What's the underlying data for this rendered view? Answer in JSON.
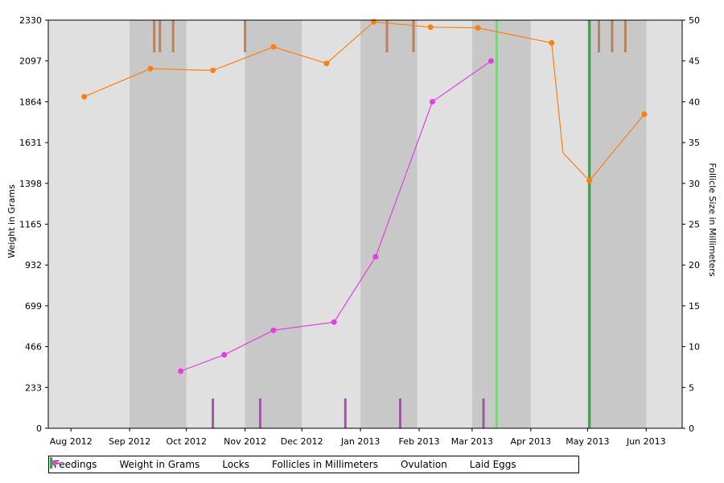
{
  "chart_data": {
    "type": "line",
    "x_categories": [
      "Aug 2012",
      "Sep 2012",
      "Oct 2012",
      "Nov 2012",
      "Dec 2012",
      "Jan 2013",
      "Feb 2013",
      "Mar 2013",
      "Apr 2013",
      "May 2013",
      "Jun 2013"
    ],
    "x_range": [
      "2012-07-20",
      "2013-06-20"
    ],
    "y_left": {
      "label": "Weight in Grams",
      "ticks": [
        "0",
        "233",
        "466",
        "699",
        "932",
        "1165",
        "1398",
        "1631",
        "1864",
        "2097",
        "2330"
      ],
      "range": [
        0,
        2330
      ]
    },
    "y_right": {
      "label": "Follicle Size in Millimeters",
      "ticks": [
        "0",
        "5",
        "10",
        "15",
        "20",
        "25",
        "30",
        "35",
        "40",
        "45",
        "50"
      ],
      "range": [
        0,
        50
      ]
    },
    "shaded_bands": [
      [
        "2012-09-01",
        "2012-10-01"
      ],
      [
        "2012-11-01",
        "2012-12-01"
      ],
      [
        "2013-01-01",
        "2013-01-31"
      ],
      [
        "2013-03-01",
        "2013-04-01"
      ],
      [
        "2013-05-01",
        "2013-06-01"
      ]
    ],
    "series": [
      {
        "name": "Weight in Grams",
        "color": "#ff7f0e",
        "axis": "left",
        "points": [
          [
            "2012-08-08",
            1893
          ],
          [
            "2012-09-12",
            2053
          ],
          [
            "2012-10-15",
            2043
          ],
          [
            "2012-11-16",
            2177
          ],
          [
            "2012-12-14",
            2083
          ],
          [
            "2013-01-08",
            2320
          ],
          [
            "2013-02-07",
            2290
          ],
          [
            "2013-03-04",
            2286
          ],
          [
            "2013-04-12",
            2200
          ],
          [
            "2013-04-18",
            1573
          ],
          [
            "2013-05-02",
            1413
          ],
          [
            "2013-05-31",
            1793
          ]
        ]
      },
      {
        "name": "Follicles in Millimeters",
        "color": "#e040e0",
        "axis": "right",
        "points": [
          [
            "2012-09-28",
            7
          ],
          [
            "2012-10-21",
            9
          ],
          [
            "2012-11-16",
            12
          ],
          [
            "2012-12-18",
            13
          ],
          [
            "2013-01-09",
            21
          ],
          [
            "2013-02-08",
            40
          ],
          [
            "2013-03-11",
            45
          ]
        ]
      }
    ],
    "feedings": {
      "name": "Feedings",
      "color": "#b8825a",
      "dates": [
        "2012-09-14",
        "2012-09-17",
        "2012-09-24",
        "2012-11-01",
        "2013-01-15",
        "2013-01-29",
        "2013-05-07",
        "2013-05-14",
        "2013-05-21"
      ]
    },
    "locks": {
      "name": "Locks",
      "color": "#9e5aa0",
      "dates": [
        "2012-10-15",
        "2012-11-09",
        "2012-12-24",
        "2013-01-22",
        "2013-03-07"
      ]
    },
    "ovulation": {
      "name": "Ovulation",
      "color": "#7fd27f",
      "dates": [
        "2013-03-14"
      ]
    },
    "laid_eggs": {
      "name": "Laid Eggs",
      "color": "#2daa3c",
      "dates": [
        "2013-05-02"
      ]
    }
  },
  "legend": [
    {
      "label": "Feedings",
      "kind": "bar",
      "color": "#b8825a"
    },
    {
      "label": "Weight in Grams",
      "kind": "line-dot",
      "color": "#ff7f0e"
    },
    {
      "label": "Locks",
      "kind": "bar",
      "color": "#9e5aa0"
    },
    {
      "label": "Follicles in Millimeters",
      "kind": "line-dot",
      "color": "#e040e0"
    },
    {
      "label": "Ovulation",
      "kind": "bar",
      "color": "#7fd27f"
    },
    {
      "label": "Laid Eggs",
      "kind": "bar",
      "color": "#2daa3c"
    }
  ]
}
